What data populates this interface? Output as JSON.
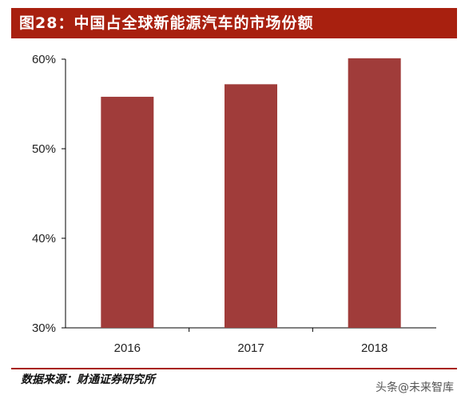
{
  "header": {
    "title": "图28：中国占全球新能源汽车的市场份额"
  },
  "footer": {
    "source": "数据来源：财通证券研究所",
    "watermark": "头条@未来智库"
  },
  "colors": {
    "bar": "#a03c3a",
    "title_bg": "#a8200f"
  },
  "chart_data": {
    "type": "bar",
    "title": "",
    "xlabel": "",
    "ylabel": "",
    "categories": [
      "2016",
      "2017",
      "2018"
    ],
    "values": [
      55.8,
      57.2,
      60.1
    ],
    "ylim": [
      30,
      60
    ],
    "yticks": [
      30,
      40,
      50,
      60
    ],
    "ytick_labels": [
      "30%",
      "40%",
      "50%",
      "60%"
    ],
    "grid": false,
    "legend": "none"
  }
}
